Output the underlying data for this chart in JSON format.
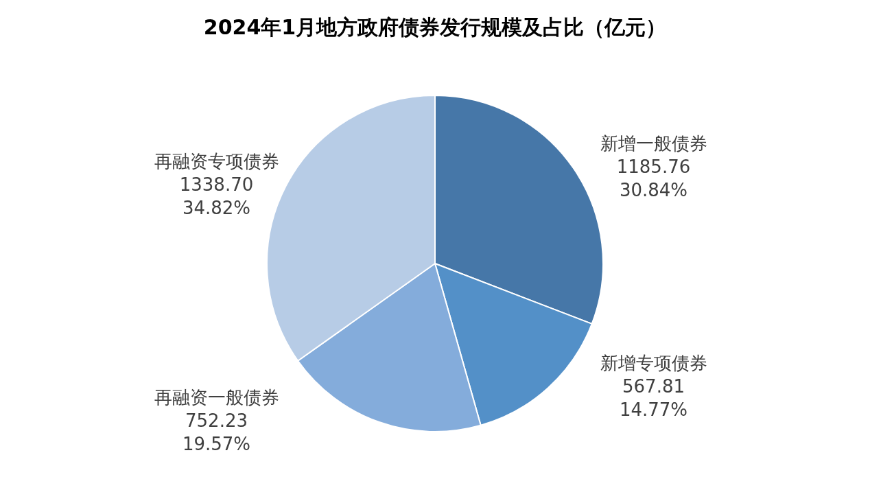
{
  "chart_data": {
    "type": "pie",
    "title": "2024年1月地方政府债券发行规模及占比（亿元）",
    "categories": [
      "新增一般债券",
      "新增专项债券",
      "再融资一般债券",
      "再融资专项债券"
    ],
    "values": [
      1185.76,
      567.81,
      752.23,
      1338.7
    ],
    "colors": [
      "#4677a8",
      "#5390c8",
      "#84acdb",
      "#b7cce6"
    ],
    "value_labels": [
      "1185.76\n30.84%",
      "567.81\n14.77%",
      "752.23\n19.57%",
      "1338.70\n34.82%"
    ],
    "legend": false
  }
}
